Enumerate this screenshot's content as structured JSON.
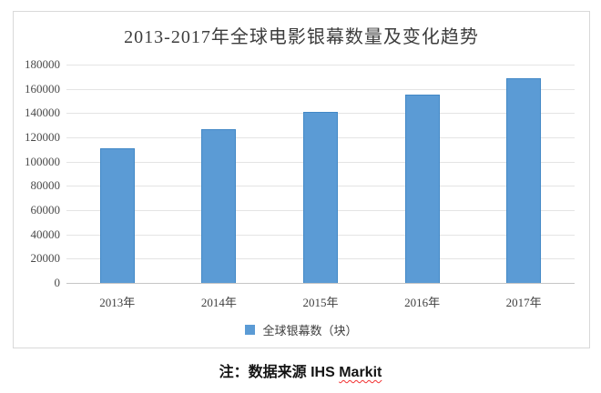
{
  "chart_data": {
    "type": "bar",
    "title": "2013-2017年全球电影银幕数量及变化趋势",
    "categories": [
      "2013年",
      "2014年",
      "2015年",
      "2016年",
      "2017年"
    ],
    "values": [
      111000,
      127000,
      141000,
      155000,
      169000
    ],
    "xlabel": "",
    "ylabel": "",
    "ylim": [
      0,
      180000
    ],
    "yticks": [
      180000,
      160000,
      140000,
      120000,
      100000,
      80000,
      60000,
      40000,
      20000,
      0
    ],
    "ytick_labels": [
      "180000",
      "160000",
      "140000",
      "120000",
      "100000",
      "80000",
      "60000",
      "40000",
      "20000",
      "0"
    ],
    "grid": true,
    "legend": [
      "全球银幕数（块）"
    ],
    "legend_position": "bottom",
    "bar_color": "#5B9BD5",
    "bar_border_color": "#4288C6"
  },
  "note": {
    "prefix": "注：数据来源 IHS ",
    "word": "Markit"
  },
  "colors": {
    "frame_border": "#D9D9D9",
    "gridline": "#E4E4E4",
    "axis_line": "#C6C6C6",
    "text": "#3D3D3D",
    "note_underline": "#F23030"
  }
}
